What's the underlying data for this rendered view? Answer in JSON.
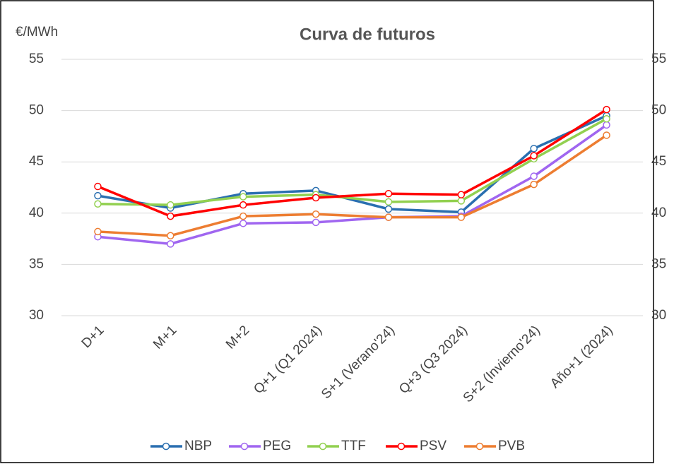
{
  "chart_data": {
    "type": "line",
    "title": "Curva de futuros",
    "y_label": "€/MWh",
    "categories": [
      "D+1",
      "M+1",
      "M+2",
      "Q+1 (Q1 2024)",
      "S+1 (Verano'24)",
      "Q+3 (Q3 2024)",
      "S+2 (Invierno'24)",
      "Año+1 (2024)"
    ],
    "series": [
      {
        "name": "NBP",
        "color": "#2a6fb0",
        "values": [
          41.7,
          40.5,
          41.9,
          42.2,
          40.4,
          40.1,
          46.3,
          49.5
        ]
      },
      {
        "name": "PEG",
        "color": "#a066f0",
        "values": [
          37.7,
          37.0,
          39.0,
          39.1,
          39.6,
          39.7,
          43.6,
          48.6
        ]
      },
      {
        "name": "TTF",
        "color": "#92d050",
        "values": [
          40.9,
          40.8,
          41.6,
          41.8,
          41.1,
          41.2,
          45.3,
          49.2
        ]
      },
      {
        "name": "PSV",
        "color": "#ff0000",
        "values": [
          42.6,
          39.7,
          40.8,
          41.5,
          41.9,
          41.8,
          45.6,
          50.1
        ]
      },
      {
        "name": "PVB",
        "color": "#ed7d31",
        "values": [
          38.2,
          37.8,
          39.7,
          39.9,
          39.6,
          39.6,
          42.8,
          47.6
        ]
      }
    ],
    "ylim": [
      30,
      55
    ],
    "yticks": [
      30,
      35,
      40,
      45,
      50,
      55
    ],
    "y2lim": [
      30,
      55
    ],
    "y2ticks": [
      30,
      35,
      40,
      45,
      50,
      55
    ],
    "grid": true,
    "legend": "bottom"
  }
}
